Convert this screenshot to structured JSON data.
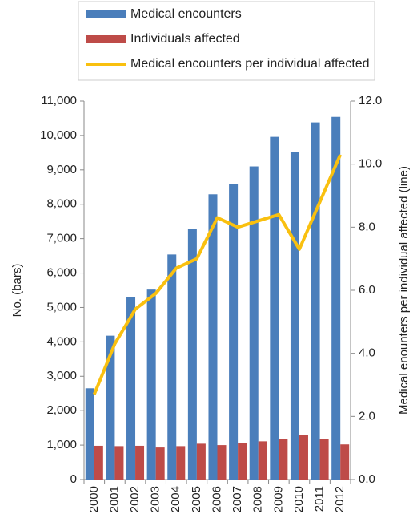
{
  "chart_data": {
    "type": "bar",
    "categories": [
      "2000",
      "2001",
      "2002",
      "2003",
      "2004",
      "2005",
      "2006",
      "2007",
      "2008",
      "2009",
      "2010",
      "2011",
      "2012"
    ],
    "series": [
      {
        "name": "Medical encounters",
        "type": "bar",
        "color": "#4a7ebb",
        "values": [
          2650,
          4180,
          5300,
          5520,
          6540,
          7280,
          8290,
          8580,
          9100,
          9960,
          9520,
          10380,
          10540
        ]
      },
      {
        "name": "Individuals affected",
        "type": "bar",
        "color": "#be4b48",
        "values": [
          980,
          970,
          980,
          930,
          970,
          1040,
          1000,
          1070,
          1110,
          1180,
          1300,
          1180,
          1020
        ]
      },
      {
        "name": "Medical encounters per individual affected",
        "type": "line",
        "axis": "y2",
        "color": "#f9c00f",
        "values": [
          2.7,
          4.3,
          5.4,
          5.9,
          6.7,
          7.0,
          8.3,
          8.0,
          8.2,
          8.4,
          7.3,
          8.8,
          10.3
        ]
      }
    ],
    "ylabel": "No. (bars)",
    "y2label": "Medical enounters per individual affected (line)",
    "ylim": [
      0,
      11000
    ],
    "yticks": [
      0,
      {
        "value": 1000,
        "label": "1,000"
      },
      {
        "value": 2000,
        "label": "2,000"
      },
      {
        "value": 3000,
        "label": "3,000"
      },
      {
        "value": 4000,
        "label": "4,000"
      },
      {
        "value": 5000,
        "label": "5,000"
      },
      {
        "value": 6000,
        "label": "6,000"
      },
      {
        "value": 7000,
        "label": "7,000"
      },
      {
        "value": 8000,
        "label": "8,000"
      },
      {
        "value": 9000,
        "label": "9,000"
      },
      {
        "value": 10000,
        "label": "10,000"
      },
      {
        "value": 11000,
        "label": "11,000"
      }
    ],
    "y2lim": [
      0,
      12
    ],
    "y2ticks": [
      {
        "value": 0,
        "label": "0.0"
      },
      {
        "value": 2,
        "label": "2.0"
      },
      {
        "value": 4,
        "label": "4.0"
      },
      {
        "value": 6,
        "label": "6.0"
      },
      {
        "value": 8,
        "label": "8.0"
      },
      {
        "value": 10,
        "label": "10.0"
      },
      {
        "value": 12,
        "label": "12.0"
      }
    ],
    "grid": false,
    "legend": "top"
  }
}
